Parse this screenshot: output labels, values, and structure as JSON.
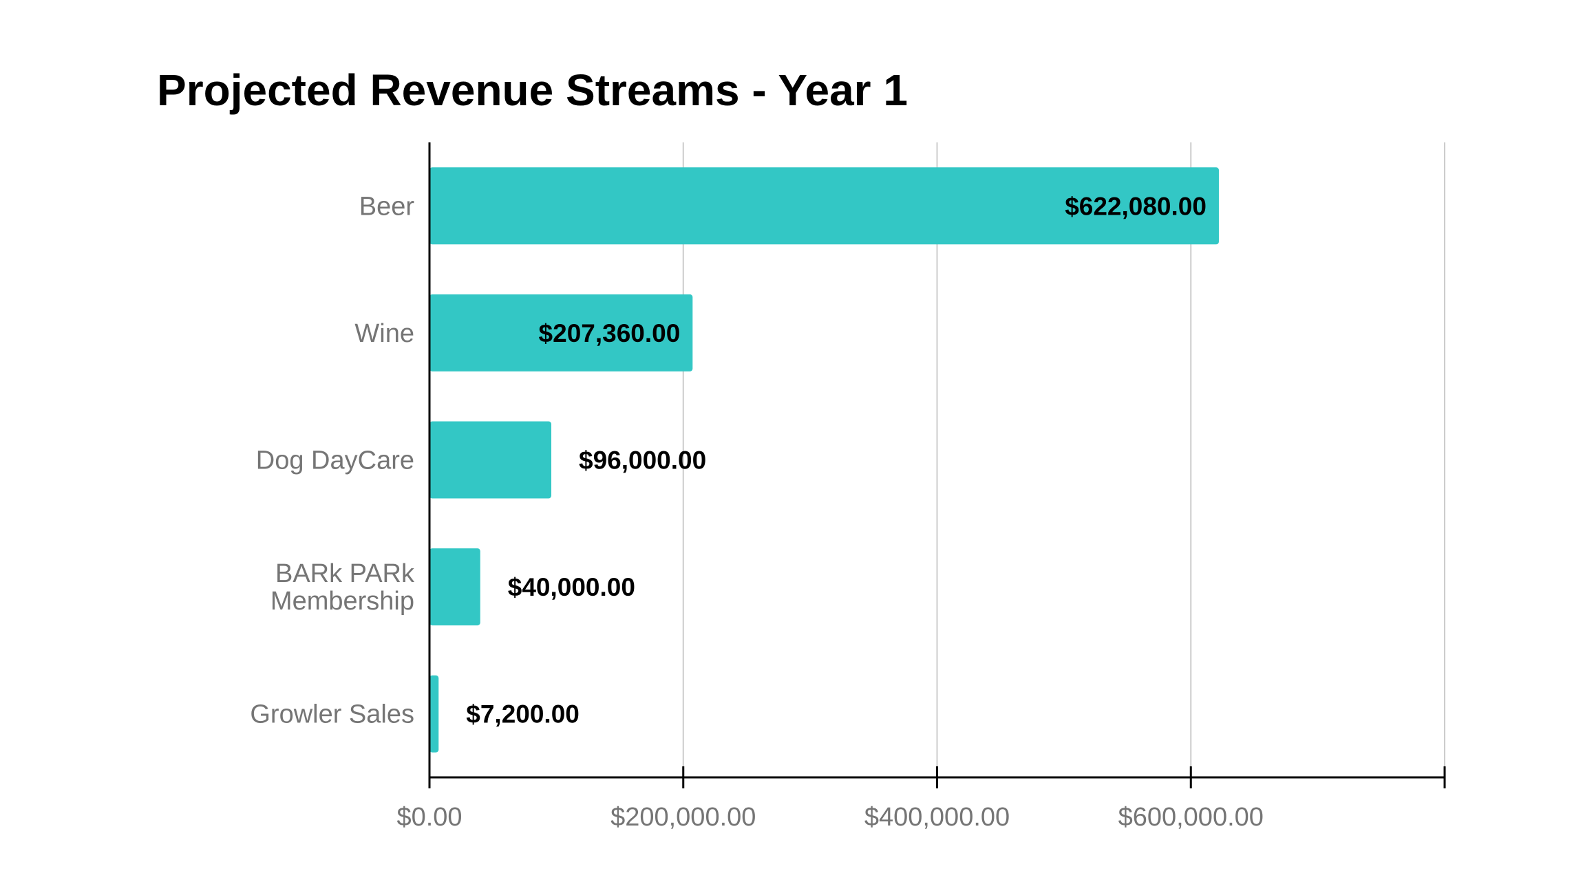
{
  "chart_data": {
    "type": "bar",
    "orientation": "horizontal",
    "title": "Projected Revenue Streams - Year 1",
    "xlabel": "",
    "ylabel": "",
    "categories": [
      [
        "Beer"
      ],
      [
        "Wine"
      ],
      [
        "Dog DayCare"
      ],
      [
        "BARk PARk",
        "Membership"
      ],
      [
        "Growler Sales"
      ]
    ],
    "values": [
      622080,
      207360,
      96000,
      40000,
      7200
    ],
    "data_labels": [
      "$622,080.00",
      "$207,360.00",
      "$96,000.00",
      "$40,000.00",
      "$7,200.00"
    ],
    "xlim": [
      0,
      800000
    ],
    "x_ticks": [
      0,
      200000,
      400000,
      600000,
      800000
    ],
    "x_tick_labels": [
      "$0.00",
      "$200,000.00",
      "$400,000.00",
      "$600,000.00",
      ""
    ],
    "grid": true,
    "legend": "none",
    "colors": {
      "bar": "#33c7c5",
      "grid": "#cccccc",
      "axis": "#000000",
      "label_inside": "#000000",
      "label_outside": "#000000"
    }
  }
}
